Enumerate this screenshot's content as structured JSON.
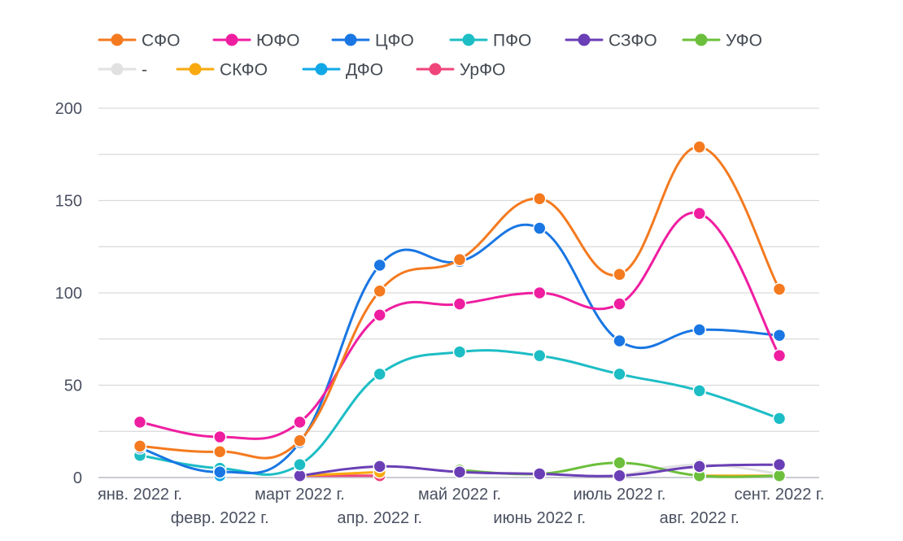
{
  "chart_data": {
    "type": "line",
    "title": "",
    "xlabel": "",
    "ylabel": "",
    "ylim": [
      0,
      200
    ],
    "yticks": [
      0,
      50,
      100,
      150,
      200
    ],
    "categories": [
      "янв. 2022 г.",
      "февр. 2022 г.",
      "март 2022 г.",
      "апр. 2022 г.",
      "май 2022 г.",
      "июнь 2022 г.",
      "июль 2022 г.",
      "авг. 2022 г.",
      "сент. 2022 г."
    ],
    "legend_position": "top",
    "series": [
      {
        "name": "СФО",
        "color": "#f47a1f",
        "values": [
          17,
          14,
          20,
          101,
          118,
          151,
          110,
          179,
          102
        ]
      },
      {
        "name": "ЮФО",
        "color": "#ef1ea0",
        "values": [
          30,
          22,
          30,
          88,
          94,
          100,
          94,
          143,
          66
        ]
      },
      {
        "name": "ЦФО",
        "color": "#1976e3",
        "values": [
          16,
          3,
          19,
          115,
          117,
          135,
          74,
          80,
          77
        ]
      },
      {
        "name": "ПФО",
        "color": "#1dbdc5",
        "values": [
          12,
          5,
          7,
          56,
          68,
          66,
          56,
          47,
          32
        ]
      },
      {
        "name": "СЗФО",
        "color": "#6a3fb5",
        "values": [
          null,
          null,
          1,
          6,
          3,
          2,
          1,
          6,
          7
        ]
      },
      {
        "name": "УФО",
        "color": "#6cbf3c",
        "values": [
          null,
          null,
          null,
          null,
          4,
          2,
          8,
          1,
          1
        ]
      },
      {
        "name": "-",
        "color": "#e1e1e1",
        "values": [
          null,
          null,
          null,
          null,
          null,
          null,
          1,
          7,
          2
        ]
      },
      {
        "name": "СКФО",
        "color": "#f8a90f",
        "values": [
          null,
          null,
          1,
          3,
          null,
          null,
          null,
          1,
          1
        ]
      },
      {
        "name": "ДФО",
        "color": "#12a8e8",
        "values": [
          null,
          1,
          null,
          null,
          null,
          null,
          null,
          null,
          null
        ]
      },
      {
        "name": "УрФО",
        "color": "#f0457a",
        "values": [
          null,
          null,
          1,
          1,
          null,
          null,
          null,
          null,
          null
        ]
      }
    ]
  }
}
